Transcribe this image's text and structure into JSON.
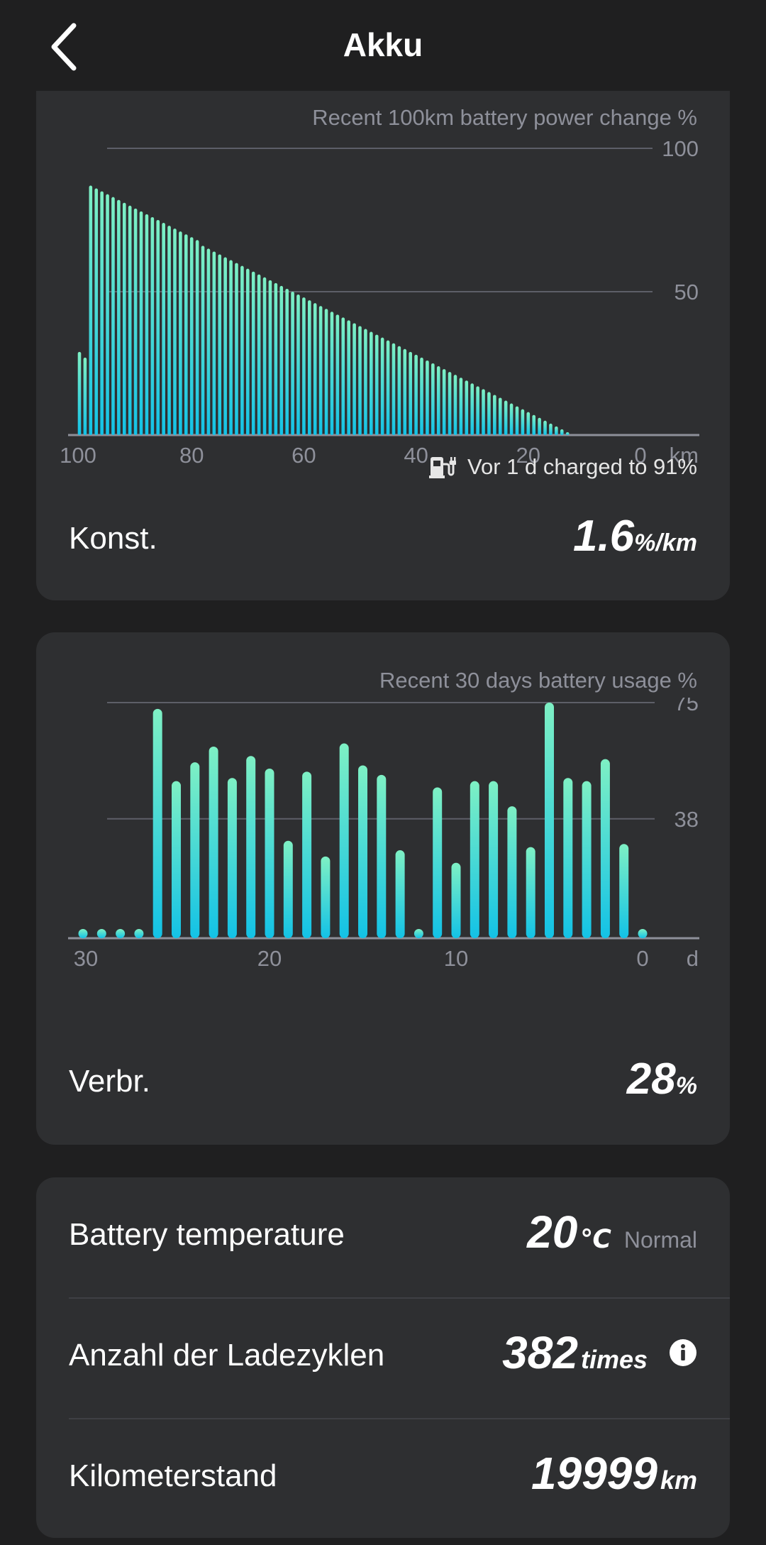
{
  "header": {
    "title": "Akku",
    "back_icon": "chevron-left-icon"
  },
  "distance_chart": {
    "title": "Recent 100km battery power change %",
    "charged_text": "Vor 1 d charged to 91%",
    "charged_icon": "charging-station-icon",
    "metric_label": "Konst.",
    "metric_value": "1.6",
    "metric_unit": "%/km"
  },
  "usage_chart": {
    "title": "Recent 30 days battery usage %",
    "metric_label": "Verbr.",
    "metric_value": "28",
    "metric_unit": "%"
  },
  "stats": {
    "temperature_label": "Battery temperature",
    "temperature_value": "20",
    "temperature_unit": "℃",
    "temperature_status": "Normal",
    "cycles_label": "Anzahl der Ladezyklen",
    "cycles_value": "382",
    "cycles_unit": "times",
    "odometer_label": "Kilometerstand",
    "odometer_value": "19999",
    "odometer_unit": "km"
  },
  "colors": {
    "background": "#1f1f20",
    "card": "#2e2f31",
    "bar_top": "#7ef0c4",
    "bar_bottom": "#13c2e6",
    "muted_text": "#8e909a",
    "grid": "#5d5f68"
  },
  "chart_data": [
    {
      "type": "bar",
      "title": "Recent 100km battery power change %",
      "xlabel": "km",
      "ylabel": "",
      "x_ticks": [
        "100",
        "80",
        "60",
        "40",
        "20",
        "0"
      ],
      "y_ticks": [
        "100",
        "50"
      ],
      "xlim": [
        100,
        0
      ],
      "ylim": [
        0,
        100
      ],
      "x": [
        100,
        99,
        98,
        97,
        96,
        95,
        94,
        93,
        92,
        91,
        90,
        89,
        88,
        87,
        86,
        85,
        84,
        83,
        82,
        81,
        80,
        79,
        78,
        77,
        76,
        75,
        74,
        73,
        72,
        71,
        70,
        69,
        68,
        67,
        66,
        65,
        64,
        63,
        62,
        61,
        60,
        59,
        58,
        57,
        56,
        55,
        54,
        53,
        52,
        51,
        50,
        49,
        48,
        47,
        46,
        45,
        44,
        43,
        42,
        41,
        40,
        39,
        38,
        37,
        36,
        35,
        34,
        33,
        32,
        31,
        30,
        29,
        28,
        27,
        26,
        25,
        24,
        23,
        22,
        21,
        20,
        19,
        18,
        17,
        16,
        15,
        14,
        13,
        12,
        11,
        10,
        9,
        8,
        7,
        6,
        5,
        4,
        3,
        2,
        1,
        0
      ],
      "values": [
        29,
        27,
        87,
        86,
        85,
        84,
        83,
        82,
        81,
        80,
        79,
        78,
        77,
        76,
        75,
        74,
        73,
        72,
        71,
        70,
        69,
        68,
        66,
        65,
        64,
        63,
        62,
        61,
        60,
        59,
        58,
        57,
        56,
        55,
        54,
        53,
        52,
        51,
        50,
        49,
        48,
        47,
        46,
        45,
        44,
        43,
        42,
        41,
        40,
        39,
        38,
        37,
        36,
        35,
        34,
        33,
        32,
        31,
        30,
        29,
        28,
        27,
        26,
        25,
        24,
        23,
        22,
        21,
        20,
        19,
        18,
        17,
        16,
        15,
        14,
        13,
        12,
        11,
        10,
        9,
        8,
        7,
        6,
        5,
        4,
        3,
        2,
        1,
        0,
        0,
        0,
        0,
        0,
        0,
        0,
        0,
        0,
        0,
        0,
        0,
        0
      ]
    },
    {
      "type": "bar",
      "title": "Recent 30 days battery usage %",
      "xlabel": "d",
      "ylabel": "",
      "x_ticks": [
        "30",
        "20",
        "10",
        "0"
      ],
      "y_ticks": [
        "75",
        "38"
      ],
      "xlim": [
        30,
        0
      ],
      "ylim": [
        0,
        75
      ],
      "x": [
        30,
        29,
        28,
        27,
        26,
        25,
        24,
        23,
        22,
        21,
        20,
        19,
        18,
        17,
        16,
        15,
        14,
        13,
        12,
        11,
        10,
        9,
        8,
        7,
        6,
        5,
        4,
        3,
        2,
        1,
        0
      ],
      "values": [
        2,
        2,
        2,
        2,
        73,
        50,
        56,
        61,
        51,
        58,
        54,
        31,
        53,
        26,
        62,
        55,
        52,
        28,
        2,
        48,
        24,
        50,
        50,
        42,
        29,
        75,
        51,
        50,
        57,
        30,
        0
      ]
    }
  ]
}
